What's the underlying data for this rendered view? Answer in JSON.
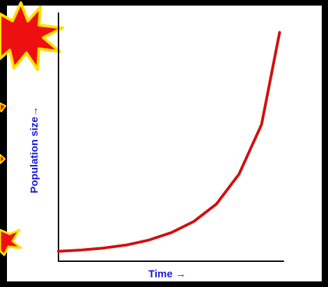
{
  "chart_data": {
    "type": "line",
    "x_label": "Time →",
    "y_label": "Population size→",
    "x": [
      0,
      10,
      20,
      30,
      40,
      50,
      60,
      70,
      80,
      90,
      98
    ],
    "series": [
      {
        "color": "#d01010",
        "values": [
          4,
          4.5,
          5.3,
          6.5,
          8.5,
          11.5,
          16,
          23,
          35,
          55,
          92
        ]
      }
    ],
    "xlim": [
      0,
      100
    ],
    "ylim": [
      0,
      100
    ]
  }
}
